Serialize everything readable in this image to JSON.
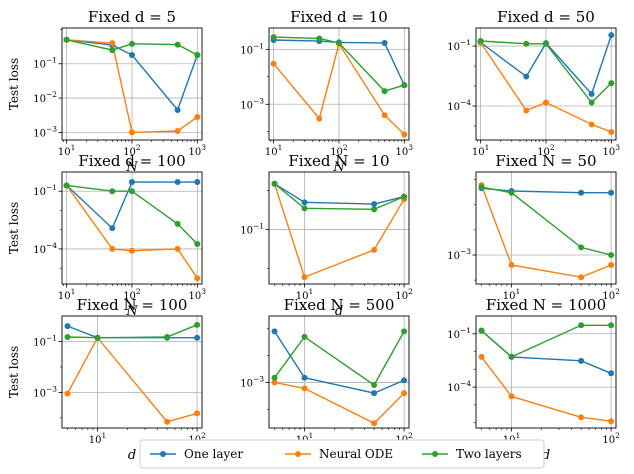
{
  "chart_data": [
    {
      "type": "line",
      "title": "Fixed d = 5",
      "xlabel": "N",
      "ylabel": "Test loss",
      "x": [
        10,
        50,
        100,
        500,
        1000
      ],
      "xscale": "log",
      "yscale": "log",
      "xlim": [
        8.5,
        1180
      ],
      "ylim": [
        0.0006,
        1.1
      ],
      "xticks": [
        10,
        100,
        1000
      ],
      "xticklabels": [
        "10^1",
        "10^2",
        "10^3"
      ],
      "yticks": [
        0.001,
        0.01,
        0.1
      ],
      "yticklabels": [
        "10^-3",
        "10^-2",
        "10^-1"
      ],
      "grid": true,
      "series": [
        {
          "name": "One layer",
          "color": "#1f77b4",
          "values": [
            0.5,
            0.35,
            0.18,
            0.0045,
            0.18
          ]
        },
        {
          "name": "Neural ODE",
          "color": "#ff7f0e",
          "values": [
            0.5,
            0.4,
            0.001,
            0.0011,
            0.0028
          ]
        },
        {
          "name": "Two layers",
          "color": "#2ca02c",
          "values": [
            0.5,
            0.25,
            0.38,
            0.36,
            0.18
          ]
        }
      ]
    },
    {
      "type": "line",
      "title": "Fixed d = 10",
      "xlabel": "N",
      "ylabel": "",
      "x": [
        10,
        50,
        100,
        500,
        1000
      ],
      "xscale": "log",
      "yscale": "log",
      "xlim": [
        8.5,
        1180
      ],
      "ylim": [
        5e-05,
        0.6
      ],
      "xticks": [
        10,
        100,
        1000
      ],
      "xticklabels": [
        "10^1",
        "10^2",
        "10^3"
      ],
      "yticks": [
        0.001,
        0.1
      ],
      "yticklabels": [
        "10^-3",
        "10^-1"
      ],
      "grid": true,
      "series": [
        {
          "name": "One layer",
          "color": "#1f77b4",
          "values": [
            0.22,
            0.2,
            0.18,
            0.17,
            0.005
          ]
        },
        {
          "name": "Neural ODE",
          "color": "#ff7f0e",
          "values": [
            0.03,
            0.0003,
            0.16,
            0.0004,
            8e-05
          ]
        },
        {
          "name": "Two layers",
          "color": "#2ca02c",
          "values": [
            0.28,
            0.25,
            0.17,
            0.003,
            0.005
          ]
        }
      ]
    },
    {
      "type": "line",
      "title": "Fixed d = 50",
      "xlabel": "",
      "ylabel": "",
      "x": [
        10,
        50,
        100,
        500,
        1000
      ],
      "xscale": "log",
      "yscale": "log",
      "xlim": [
        8.5,
        1180
      ],
      "ylim": [
        2e-06,
        0.8
      ],
      "xticks": [
        10,
        100,
        1000
      ],
      "xticklabels": [
        "10^1",
        "10^2",
        "10^3"
      ],
      "yticks": [
        0.0001,
        0.1
      ],
      "yticklabels": [
        "10^-4",
        "10^-1"
      ],
      "grid": true,
      "series": [
        {
          "name": "One layer",
          "color": "#1f77b4",
          "values": [
            0.15,
            0.003,
            0.14,
            0.0004,
            0.35
          ]
        },
        {
          "name": "Neural ODE",
          "color": "#ff7f0e",
          "values": [
            0.15,
            6e-05,
            0.00015,
            1.2e-05,
            5e-06
          ]
        },
        {
          "name": "Two layers",
          "color": "#2ca02c",
          "values": [
            0.18,
            0.13,
            0.13,
            0.00015,
            0.0014
          ]
        }
      ]
    },
    {
      "type": "line",
      "title": "Fixed d = 100",
      "xlabel": "N",
      "ylabel": "Test loss",
      "x": [
        10,
        50,
        100,
        500,
        1000
      ],
      "xscale": "log",
      "yscale": "log",
      "xlim": [
        8.5,
        1180
      ],
      "ylim": [
        1.5e-06,
        1.0
      ],
      "xticks": [
        10,
        100,
        1000
      ],
      "xticklabels": [
        "10^1",
        "10^2",
        "10^3"
      ],
      "yticks": [
        0.0001,
        0.1
      ],
      "yticklabels": [
        "10^-4",
        "10^-1"
      ],
      "grid": true,
      "series": [
        {
          "name": "One layer",
          "color": "#1f77b4",
          "values": [
            0.2,
            0.0012,
            0.3,
            0.3,
            0.3
          ]
        },
        {
          "name": "Neural ODE",
          "color": "#ff7f0e",
          "values": [
            0.2,
            0.0001,
            8e-05,
            0.0001,
            3e-06
          ]
        },
        {
          "name": "Two layers",
          "color": "#2ca02c",
          "values": [
            0.2,
            0.1,
            0.1,
            0.002,
            0.00018
          ]
        }
      ]
    },
    {
      "type": "line",
      "title": "Fixed N = 10",
      "xlabel": "d",
      "ylabel": "",
      "x": [
        5,
        10,
        50,
        100
      ],
      "xscale": "log",
      "yscale": "log",
      "xlim": [
        4.4,
        112
      ],
      "ylim": [
        0.004,
        3.0
      ],
      "xticks": [
        10,
        100
      ],
      "xticklabels": [
        "10^1",
        "10^2"
      ],
      "yticks": [
        0.1
      ],
      "yticklabels": [
        "10^-1"
      ],
      "grid": true,
      "series": [
        {
          "name": "One layer",
          "color": "#1f77b4",
          "values": [
            1.5,
            0.5,
            0.45,
            0.7
          ]
        },
        {
          "name": "Neural ODE",
          "color": "#ff7f0e",
          "values": [
            1.5,
            0.006,
            0.03,
            0.6
          ]
        },
        {
          "name": "Two layers",
          "color": "#2ca02c",
          "values": [
            1.5,
            0.35,
            0.33,
            0.7
          ]
        }
      ]
    },
    {
      "type": "line",
      "title": "Fixed N = 50",
      "xlabel": "",
      "ylabel": "",
      "x": [
        5,
        10,
        50,
        100
      ],
      "xscale": "log",
      "yscale": "log",
      "xlim": [
        4.4,
        112
      ],
      "ylim": [
        7e-05,
        2.0
      ],
      "xticks": [
        10,
        100
      ],
      "xticklabels": [
        "10^1",
        "10^2"
      ],
      "yticks": [
        0.001
      ],
      "yticklabels": [
        "10^-3"
      ],
      "grid": true,
      "series": [
        {
          "name": "One layer",
          "color": "#1f77b4",
          "values": [
            0.45,
            0.35,
            0.3,
            0.3
          ]
        },
        {
          "name": "Neural ODE",
          "color": "#ff7f0e",
          "values": [
            0.6,
            0.0004,
            0.00013,
            0.0004
          ]
        },
        {
          "name": "Two layers",
          "color": "#2ca02c",
          "values": [
            0.5,
            0.3,
            0.002,
            0.001
          ]
        }
      ]
    },
    {
      "type": "line",
      "title": "Fixed N = 100",
      "xlabel": "d",
      "ylabel": "Test loss",
      "x": [
        5,
        10,
        50,
        100
      ],
      "xscale": "log",
      "yscale": "log",
      "xlim": [
        4.4,
        112
      ],
      "ylim": [
        4e-05,
        1.0
      ],
      "xticks": [
        10,
        100
      ],
      "xticklabels": [
        "10^1",
        "10^2"
      ],
      "yticks": [
        0.001,
        0.1
      ],
      "yticklabels": [
        "10^-3",
        "10^-1"
      ],
      "grid": true,
      "series": [
        {
          "name": "One layer",
          "color": "#1f77b4",
          "values": [
            0.4,
            0.14,
            0.14,
            0.14
          ]
        },
        {
          "name": "Neural ODE",
          "color": "#ff7f0e",
          "values": [
            0.0009,
            0.14,
            7e-05,
            0.00015
          ]
        },
        {
          "name": "Two layers",
          "color": "#2ca02c",
          "values": [
            0.15,
            0.14,
            0.15,
            0.45
          ]
        }
      ]
    },
    {
      "type": "line",
      "title": "Fixed N = 500",
      "xlabel": "d",
      "ylabel": "",
      "x": [
        5,
        10,
        50,
        100
      ],
      "xscale": "log",
      "yscale": "log",
      "xlim": [
        4.4,
        112
      ],
      "ylim": [
        2e-05,
        0.3
      ],
      "xticks": [
        10,
        100
      ],
      "xticklabels": [
        "10^1",
        "10^2"
      ],
      "yticks": [
        0.001
      ],
      "yticklabels": [
        "10^-3"
      ],
      "grid": true,
      "series": [
        {
          "name": "One layer",
          "color": "#1f77b4",
          "values": [
            0.08,
            0.0015,
            0.0004,
            0.0012
          ]
        },
        {
          "name": "Neural ODE",
          "color": "#ff7f0e",
          "values": [
            0.001,
            0.0006,
            3e-05,
            0.0004
          ]
        },
        {
          "name": "Two layers",
          "color": "#2ca02c",
          "values": [
            0.0015,
            0.05,
            0.0008,
            0.08
          ]
        }
      ]
    },
    {
      "type": "line",
      "title": "Fixed N = 1000",
      "xlabel": "d",
      "ylabel": "",
      "x": [
        5,
        10,
        50,
        100
      ],
      "xscale": "log",
      "yscale": "log",
      "xlim": [
        4.4,
        112
      ],
      "ylim": [
        5e-07,
        1.0
      ],
      "xticks": [
        10,
        100
      ],
      "xticklabels": [
        "10^1",
        "10^2"
      ],
      "yticks": [
        0.0001,
        0.1
      ],
      "yticklabels": [
        "10^-4",
        "10^-1"
      ],
      "grid": true,
      "series": [
        {
          "name": "One layer",
          "color": "#1f77b4",
          "values": [
            0.15,
            0.005,
            0.003,
            0.0006
          ]
        },
        {
          "name": "Neural ODE",
          "color": "#ff7f0e",
          "values": [
            0.005,
            3e-05,
            2e-06,
            1.2e-06
          ]
        },
        {
          "name": "Two layers",
          "color": "#2ca02c",
          "values": [
            0.15,
            0.005,
            0.3,
            0.3
          ]
        }
      ]
    }
  ],
  "legend": {
    "placement": "bottom-center",
    "items": [
      {
        "label": "One layer",
        "color": "#1f77b4"
      },
      {
        "label": "Neural ODE",
        "color": "#ff7f0e"
      },
      {
        "label": "Two layers",
        "color": "#2ca02c"
      }
    ]
  }
}
